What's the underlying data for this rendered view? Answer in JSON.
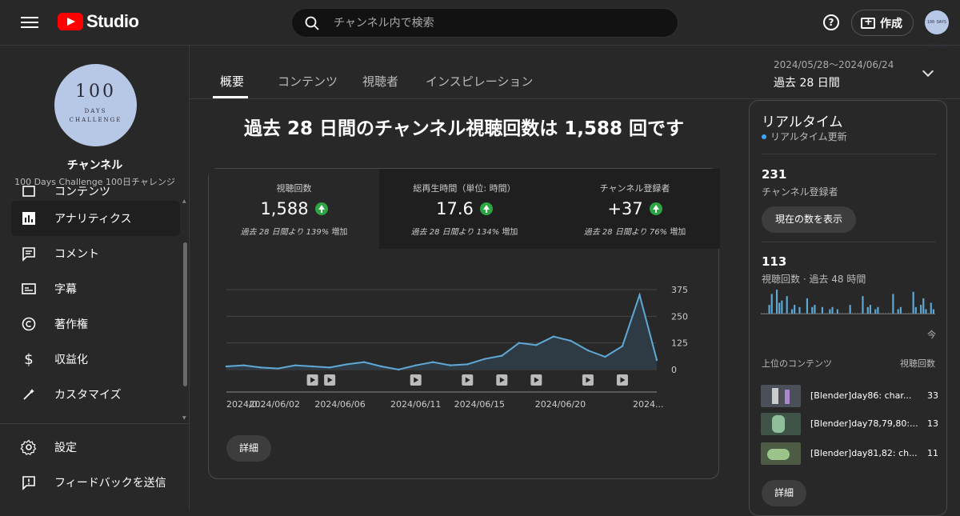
{
  "header": {
    "logo_text": "Studio",
    "search_placeholder": "チャンネル内で検索",
    "help_glyph": "?",
    "create_label": "作成",
    "avatar_text": "100 DAYS CHALLENGE"
  },
  "sidebar": {
    "avatar": {
      "line1": "100",
      "line2": "DAYS",
      "line3": "CHALLENGE"
    },
    "channel_title": "チャンネル",
    "channel_subtitle": "100 Days Challenge 100日チャレンジ",
    "items": [
      {
        "label": "コンテンツ",
        "icon": "content-icon",
        "active": false
      },
      {
        "label": "アナリティクス",
        "icon": "analytics-icon",
        "active": true
      },
      {
        "label": "コメント",
        "icon": "comment-icon",
        "active": false
      },
      {
        "label": "字幕",
        "icon": "subtitles-icon",
        "active": false
      },
      {
        "label": "著作権",
        "icon": "copyright-icon",
        "active": false
      },
      {
        "label": "収益化",
        "icon": "monetization-icon",
        "active": false
      },
      {
        "label": "カスタマイズ",
        "icon": "customize-icon",
        "active": false
      }
    ],
    "footer_items": [
      {
        "label": "設定",
        "icon": "gear-icon"
      },
      {
        "label": "フィードバックを送信",
        "icon": "feedback-icon"
      }
    ]
  },
  "tabs": [
    {
      "label": "概要",
      "active": true
    },
    {
      "label": "コンテンツ",
      "active": false
    },
    {
      "label": "視聴者",
      "active": false
    },
    {
      "label": "インスピレーション",
      "active": false
    }
  ],
  "date_range": {
    "range": "2024/05/28～2024/06/24",
    "label": "過去 28 日間"
  },
  "headline": "過去 28 日間のチャンネル視聴回数は 1,588 回です",
  "metrics": [
    {
      "label": "視聴回数",
      "value": "1,588",
      "compare_prefix": "過去 28 日間より",
      "compare_pct": "139%",
      "compare_suffix": "増加"
    },
    {
      "label": "総再生時間（単位: 時間）",
      "value": "17.6",
      "compare_prefix": "過去 28 日間より",
      "compare_pct": "134%",
      "compare_suffix": "増加"
    },
    {
      "label": "チャンネル登録者",
      "value": "+37",
      "compare_prefix": "過去 28 日間より",
      "compare_pct": "76%",
      "compare_suffix": "増加"
    }
  ],
  "chart_data": {
    "type": "area",
    "x_tick_labels": [
      "2024/0...",
      "2024/06/02",
      "2024/06/06",
      "2024/06/11",
      "2024/06/15",
      "2024/06/20",
      "2024..."
    ],
    "y_ticks": [
      0,
      125,
      250,
      375
    ],
    "ylim": [
      0,
      375
    ],
    "values": [
      15,
      20,
      10,
      5,
      20,
      15,
      10,
      25,
      35,
      15,
      0,
      20,
      35,
      20,
      25,
      50,
      65,
      125,
      115,
      155,
      135,
      90,
      60,
      110,
      350,
      45
    ],
    "video_markers_day_index": [
      5,
      6,
      11,
      14,
      16,
      18,
      21,
      23
    ],
    "colors": {
      "line": "#5ea9d6",
      "fill": "#2f3b44",
      "grid": "#444444"
    }
  },
  "details_label": "詳細",
  "realtime": {
    "title": "リアルタイム",
    "live_label": "リアルタイム更新",
    "subscribers_value": "231",
    "subscribers_label": "チャンネル登録者",
    "show_count_button": "現在の数を表示",
    "views_value": "113",
    "views_label": "視聴回数 · 過去 48 時間",
    "bars": [
      0,
      0,
      0,
      8,
      18,
      0,
      22,
      10,
      12,
      0,
      16,
      0,
      4,
      8,
      0,
      6,
      0,
      0,
      14,
      0,
      6,
      8,
      0,
      0,
      6,
      0,
      0,
      4,
      6,
      0,
      4,
      0,
      0,
      0,
      0,
      8,
      0,
      0,
      0,
      0,
      16,
      0,
      6,
      8,
      0,
      4,
      6,
      0,
      0,
      0,
      0,
      0,
      18,
      0,
      4,
      6,
      0,
      0,
      0,
      0,
      20,
      6,
      0,
      8,
      14,
      4,
      0,
      10,
      4
    ],
    "now_label": "今",
    "top_content_header": "上位のコンテンツ",
    "views_header": "視聴回数",
    "top_content": [
      {
        "title": "[Blender]day86: char...",
        "views": "33"
      },
      {
        "title": "[Blender]day78,79,80:...",
        "views": "13"
      },
      {
        "title": "[Blender]day81,82: ch...",
        "views": "11"
      }
    ],
    "details_label": "詳細"
  }
}
